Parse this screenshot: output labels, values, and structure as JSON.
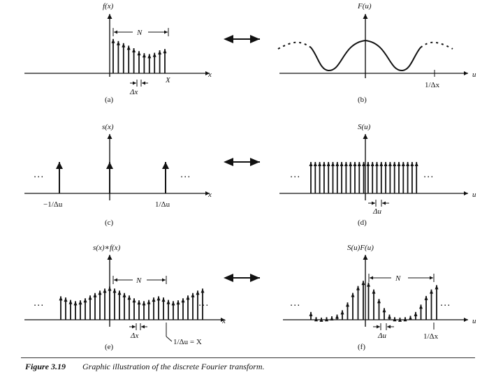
{
  "caption": {
    "figure_label": "Figure 3.19",
    "text": "Graphic illustration of the discrete Fourier transform."
  },
  "panels": {
    "a": {
      "tag": "(a)",
      "func": "f(x)",
      "axis": "x",
      "N": "N",
      "dx": "Δx",
      "X": "X",
      "samples": [
        0.82,
        0.77,
        0.72,
        0.66,
        0.6,
        0.53,
        0.48,
        0.46,
        0.49,
        0.55,
        0.58
      ]
    },
    "b": {
      "tag": "(b)",
      "func": "F(u)",
      "axis": "u",
      "tick": "1/Δx"
    },
    "c": {
      "tag": "(c)",
      "func": "s(x)",
      "axis": "x",
      "tick_left": "−1/Δu",
      "tick_right": "1/Δu",
      "dots": "···"
    },
    "d": {
      "tag": "(d)",
      "func": "S(u)",
      "axis": "u",
      "du": "Δu",
      "dots": "···",
      "count": 25
    },
    "e": {
      "tag": "(e)",
      "func": "s(x)∗f(x)",
      "axis": "x",
      "N": "N",
      "dx": "Δx",
      "mark": "1/Δu = X",
      "dots": "···",
      "samples": [
        0.58,
        0.55,
        0.49,
        0.46,
        0.48,
        0.53,
        0.6,
        0.66,
        0.72,
        0.77,
        0.82,
        0.77,
        0.72,
        0.66,
        0.6,
        0.53,
        0.48,
        0.46,
        0.49,
        0.55,
        0.58,
        0.55,
        0.49,
        0.46,
        0.48,
        0.53,
        0.6,
        0.66,
        0.72,
        0.77
      ]
    },
    "f": {
      "tag": "(f)",
      "func": "S(u)F(u)",
      "axis": "u",
      "N": "N",
      "du": "Δu",
      "tick": "1/Δx",
      "dots": "···",
      "samples": [
        0.18,
        0.06,
        0.05,
        0.06,
        0.08,
        0.12,
        0.22,
        0.4,
        0.62,
        0.78,
        0.9,
        0.86,
        0.7,
        0.48,
        0.27,
        0.12,
        0.06,
        0.05,
        0.06,
        0.09,
        0.18,
        0.35,
        0.55,
        0.7,
        0.8
      ]
    }
  },
  "arrows": [
    "transform-pair-arrow",
    "transform-pair-arrow",
    "transform-pair-arrow"
  ]
}
